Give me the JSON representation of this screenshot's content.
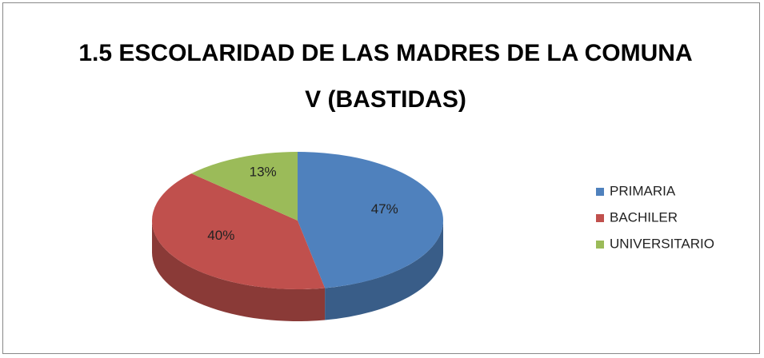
{
  "chart_data": {
    "type": "pie",
    "title": "1.5 ESCOLARIDAD DE LAS MADRES DE LA COMUNA V (BASTIDAS)",
    "categories": [
      "PRIMARIA",
      "BACHILER",
      "UNIVERSITARIO"
    ],
    "values": [
      47,
      40,
      13
    ],
    "value_labels": [
      "47%",
      "40%",
      "13%"
    ],
    "colors": [
      "#4f81bd",
      "#c0504d",
      "#9bbb59"
    ],
    "legend": "right"
  }
}
